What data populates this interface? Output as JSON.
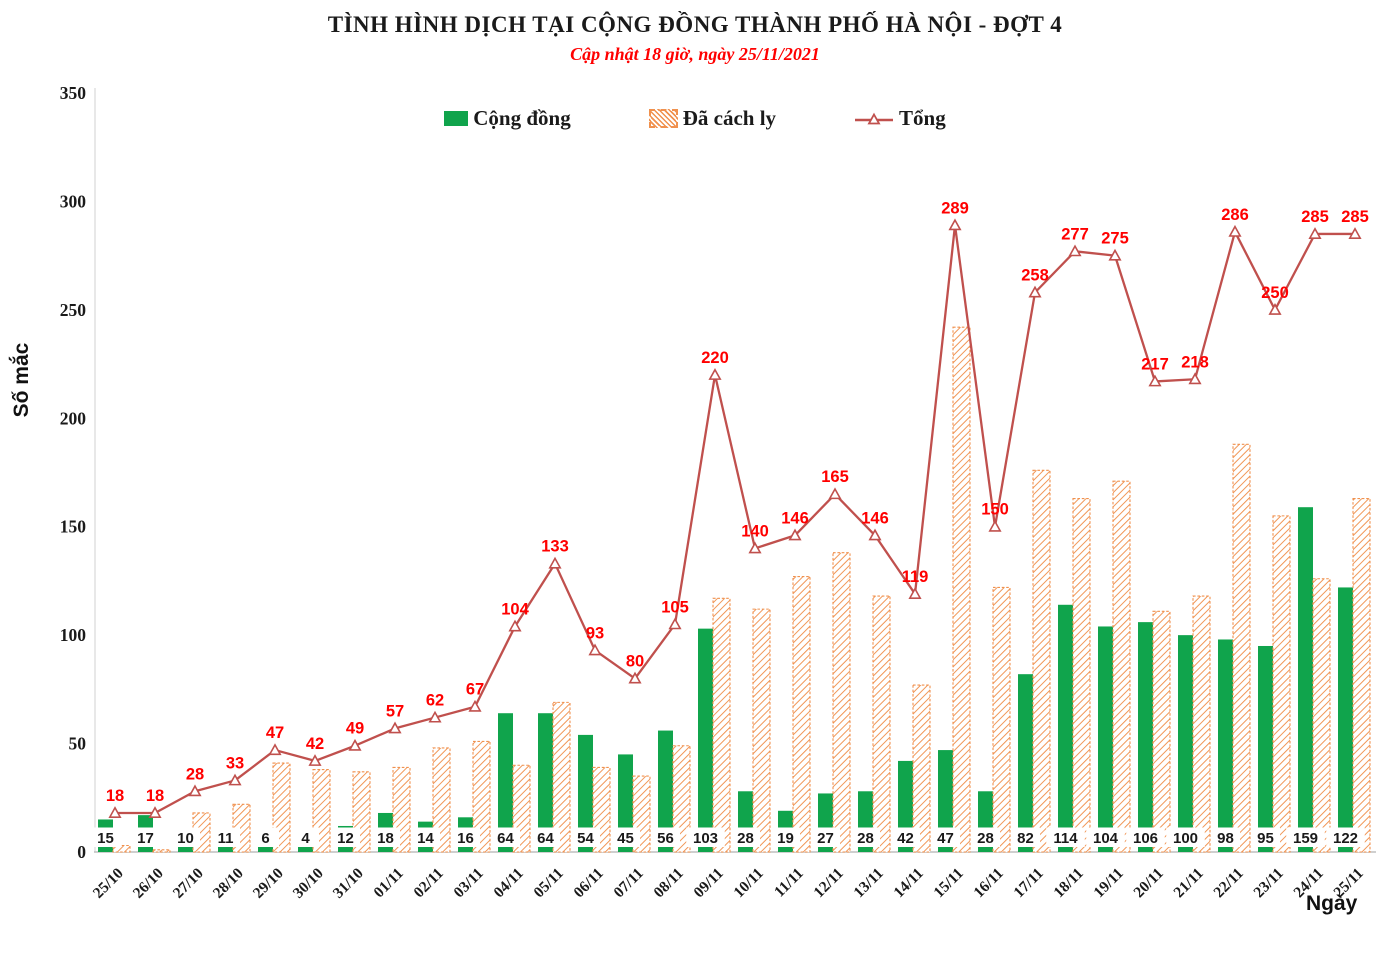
{
  "header": {
    "title": "TÌNH HÌNH DỊCH TẠI CỘNG ĐỒNG THÀNH PHỐ HÀ NỘI - ĐỢT 4",
    "subtitle": "Cập nhật 18 giờ, ngày 25/11/2021"
  },
  "legend": {
    "items": [
      {
        "label": "Cộng đồng",
        "swatch": "green-bar"
      },
      {
        "label": "Đã cách ly",
        "swatch": "orange-hatched-bar"
      },
      {
        "label": "Tổng",
        "swatch": "red-line-triangle"
      }
    ]
  },
  "axes": {
    "y_title": "Số mắc",
    "x_title": "Ngày",
    "y_ticks": [
      0,
      50,
      100,
      150,
      200,
      250,
      300,
      350
    ]
  },
  "colors": {
    "green": "#10A44C",
    "orange": "#F0914E",
    "line": "#C0504D",
    "value_label_red": "#FF0000",
    "axis_line": "#BFBFBF",
    "text_black": "#1a1a1a"
  },
  "chart_data": {
    "type": "bar+line",
    "title": "TÌNH HÌNH DỊCH TẠI CỘNG ĐỒNG THÀNH PHỐ HÀ NỘI - ĐỢT 4",
    "xlabel": "Ngày",
    "ylabel": "Số mắc",
    "ylim": [
      0,
      350
    ],
    "grid": false,
    "legend_position": "top-center",
    "categories": [
      "25/10",
      "26/10",
      "27/10",
      "28/10",
      "29/10",
      "30/10",
      "31/10",
      "01/11",
      "02/11",
      "03/11",
      "04/11",
      "05/11",
      "06/11",
      "07/11",
      "08/11",
      "09/11",
      "10/11",
      "11/11",
      "12/11",
      "13/11",
      "14/11",
      "15/11",
      "16/11",
      "17/11",
      "18/11",
      "19/11",
      "20/11",
      "21/11",
      "22/11",
      "23/11",
      "24/11",
      "25/11"
    ],
    "series": [
      {
        "name": "Cộng đồng",
        "type": "bar",
        "style": "solid",
        "color": "#10A44C",
        "labels_shown": true,
        "values": [
          15,
          17,
          10,
          11,
          6,
          4,
          12,
          18,
          14,
          16,
          64,
          64,
          54,
          45,
          56,
          103,
          28,
          19,
          27,
          28,
          42,
          47,
          28,
          82,
          114,
          104,
          106,
          100,
          98,
          95,
          159,
          122
        ]
      },
      {
        "name": "Đã cách ly",
        "type": "bar",
        "style": "hatched",
        "color": "#F0914E",
        "labels_shown": false,
        "values": [
          3,
          1,
          18,
          22,
          41,
          38,
          37,
          39,
          48,
          51,
          40,
          69,
          39,
          35,
          49,
          117,
          112,
          127,
          138,
          118,
          77,
          242,
          122,
          176,
          163,
          171,
          111,
          118,
          188,
          155,
          126,
          163
        ]
      },
      {
        "name": "Tổng",
        "type": "line",
        "marker": "triangle",
        "color": "#C0504D",
        "labels_shown": true,
        "values": [
          18,
          18,
          28,
          33,
          47,
          42,
          49,
          57,
          62,
          67,
          104,
          133,
          93,
          80,
          105,
          220,
          140,
          146,
          165,
          146,
          119,
          289,
          150,
          258,
          277,
          275,
          217,
          218,
          286,
          250,
          285,
          285
        ]
      }
    ]
  }
}
